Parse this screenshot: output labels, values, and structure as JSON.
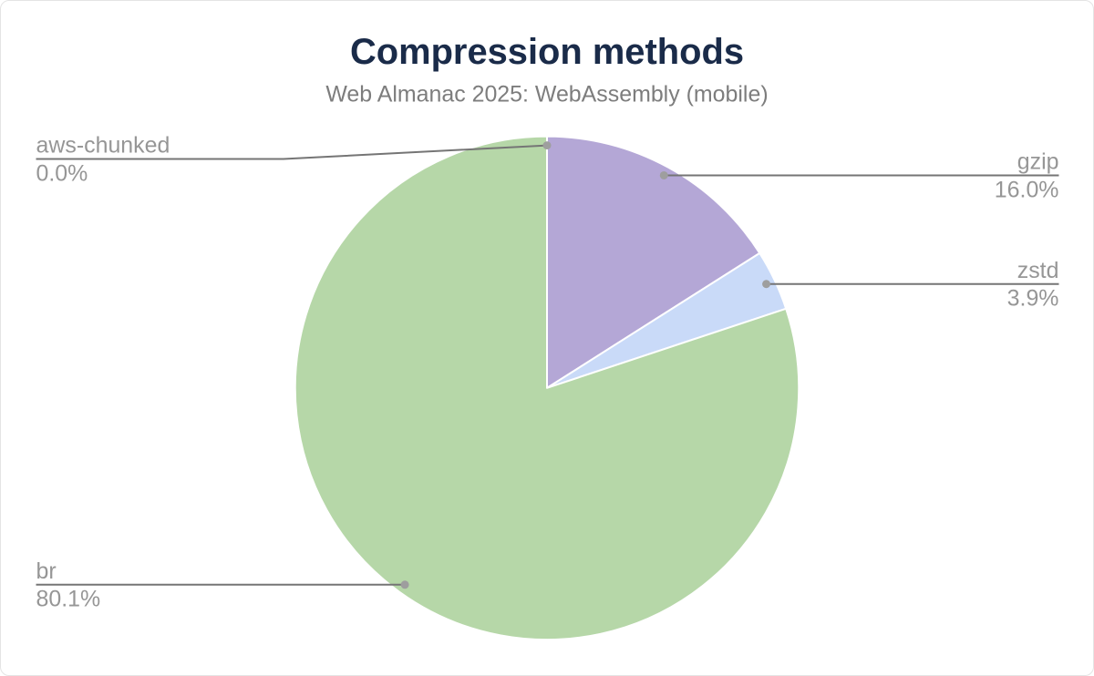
{
  "chart": {
    "title": "Compression methods",
    "subtitle": "Web Almanac 2025: WebAssembly (mobile)"
  },
  "colors": {
    "title": "#1a2b49",
    "subtitle": "#7d7d7d",
    "label_text": "#969696",
    "leader_line": "#757575",
    "leader_dot": "#9e9e9e",
    "background": "#ffffff",
    "slice_gap": "#ffffff"
  },
  "chart_data": {
    "type": "pie",
    "title": "Compression methods",
    "subtitle": "Web Almanac 2025: WebAssembly (mobile)",
    "legend_position": "none",
    "label_style": "outside-callout",
    "start_angle_deg": 0,
    "direction": "clockwise",
    "unit": "%",
    "slices": [
      {
        "label": "gzip",
        "value": 16.0,
        "display": "16.0%",
        "color": "#b4a7d6"
      },
      {
        "label": "zstd",
        "value": 3.9,
        "display": "3.9%",
        "color": "#c9daf8"
      },
      {
        "label": "br",
        "value": 80.1,
        "display": "80.1%",
        "color": "#b6d7a8"
      },
      {
        "label": "aws-chunked",
        "value": 0.0,
        "display": "0.0%",
        "color": null
      }
    ]
  }
}
